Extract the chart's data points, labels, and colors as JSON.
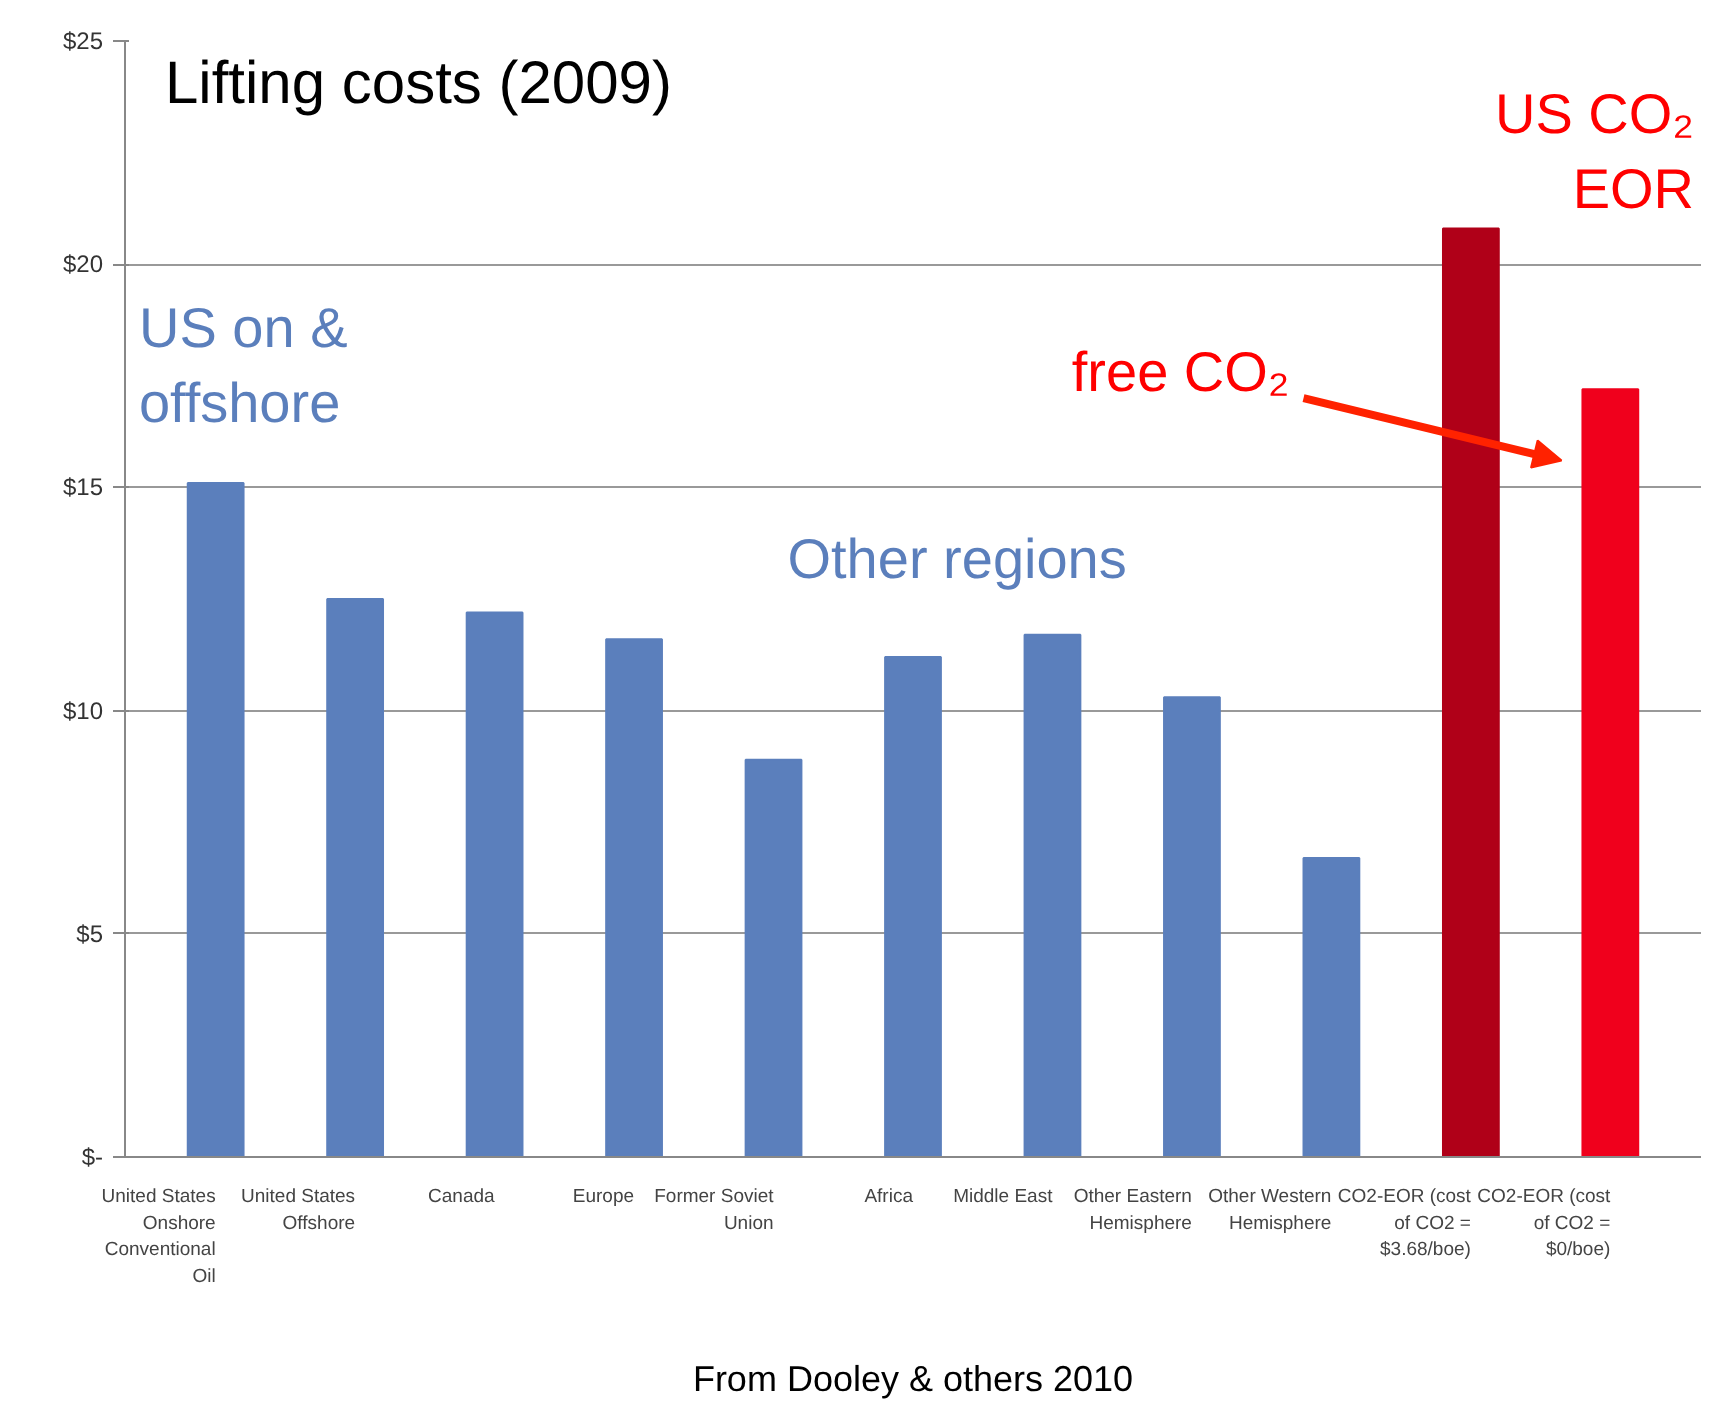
{
  "chart_data": {
    "type": "bar",
    "title": "Lifting costs (2009)",
    "categories": [
      "United States Onshore Conventional Oil",
      "United States Offshore",
      "Canada",
      "Europe",
      "Former Soviet Union",
      "Africa",
      "Middle East",
      "Other Eastern Hemisphere",
      "Other Western Hemisphere",
      "CO2-EOR (cost of CO2 = $3.68/boe)",
      "CO2-EOR (cost of CO2 = $0/boe)"
    ],
    "values": [
      15.1,
      12.5,
      12.2,
      11.6,
      8.9,
      11.2,
      11.7,
      10.3,
      6.7,
      20.8,
      17.2
    ],
    "colors": [
      "#5b7fbc",
      "#5b7fbc",
      "#5b7fbc",
      "#5b7fbc",
      "#5b7fbc",
      "#5b7fbc",
      "#5b7fbc",
      "#5b7fbc",
      "#5b7fbc",
      "#b00018",
      "#f0001c"
    ],
    "ylim": [
      0,
      25
    ],
    "yticks": [
      {
        "value": 0,
        "label": "$-"
      },
      {
        "value": 5,
        "label": "$5"
      },
      {
        "value": 10,
        "label": "$10"
      },
      {
        "value": 15,
        "label": "$15"
      },
      {
        "value": 20,
        "label": "$20"
      },
      {
        "value": 25,
        "label": "$25"
      }
    ],
    "grid": "y",
    "annotations": [
      "US on & offshore",
      "Other regions",
      "US CO₂ EOR",
      "free CO₂",
      "From Dooley & others 2010"
    ]
  }
}
